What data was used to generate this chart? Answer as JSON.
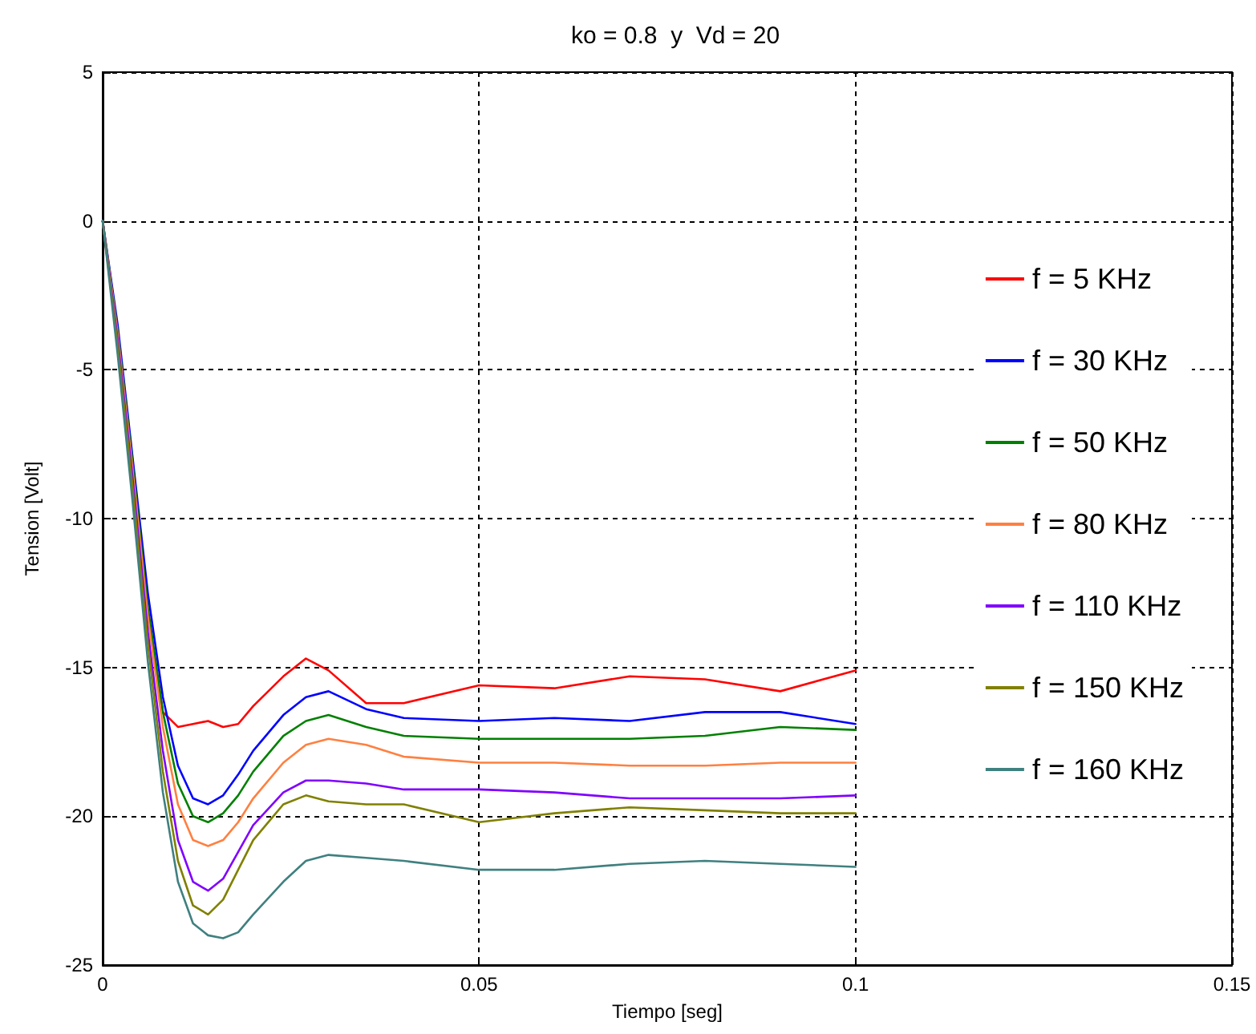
{
  "chart_data": {
    "type": "line",
    "title": "ko = 0.8  y  Vd = 20",
    "xlabel": "Tiempo [seg]",
    "ylabel": "Tension [Volt]",
    "x": [
      0,
      0.002,
      0.004,
      0.006,
      0.008,
      0.01,
      0.012,
      0.014,
      0.016,
      0.018,
      0.02,
      0.024,
      0.027,
      0.03,
      0.035,
      0.04,
      0.05,
      0.06,
      0.07,
      0.08,
      0.09,
      0.1
    ],
    "series": [
      {
        "name": "f = 5 KHz",
        "color": "#ff0000",
        "values": [
          0,
          -4,
          -8.5,
          -13,
          -16.5,
          -17,
          -16.9,
          -16.8,
          -17,
          -16.9,
          -16.3,
          -15.3,
          -14.7,
          -15.1,
          -16.2,
          -16.2,
          -15.6,
          -15.7,
          -15.3,
          -15.4,
          -15.8,
          -15.1
        ]
      },
      {
        "name": "f = 30 KHz",
        "color": "#0000ff",
        "values": [
          0,
          -3.5,
          -8,
          -12.5,
          -16,
          -18.3,
          -19.4,
          -19.6,
          -19.3,
          -18.6,
          -17.8,
          -16.6,
          -16.0,
          -15.8,
          -16.4,
          -16.7,
          -16.8,
          -16.7,
          -16.8,
          -16.5,
          -16.5,
          -16.9
        ]
      },
      {
        "name": "f = 50 KHz",
        "color": "#008000",
        "values": [
          0,
          -3.7,
          -8.2,
          -13,
          -16.5,
          -18.9,
          -20.0,
          -20.2,
          -19.9,
          -19.3,
          -18.5,
          -17.3,
          -16.8,
          -16.6,
          -17.0,
          -17.3,
          -17.4,
          -17.4,
          -17.4,
          -17.3,
          -17.0,
          -17.1
        ]
      },
      {
        "name": "f = 80 KHz",
        "color": "#ff8040",
        "values": [
          0,
          -3.8,
          -8.4,
          -13.3,
          -17,
          -19.6,
          -20.8,
          -21.0,
          -20.8,
          -20.2,
          -19.4,
          -18.2,
          -17.6,
          -17.4,
          -17.6,
          -18.0,
          -18.2,
          -18.2,
          -18.3,
          -18.3,
          -18.2,
          -18.2
        ]
      },
      {
        "name": "f = 110 KHz",
        "color": "#8000ff",
        "values": [
          0,
          -4,
          -8.7,
          -13.8,
          -17.8,
          -20.8,
          -22.2,
          -22.5,
          -22.1,
          -21.2,
          -20.3,
          -19.2,
          -18.8,
          -18.8,
          -18.9,
          -19.1,
          -19.1,
          -19.2,
          -19.4,
          -19.4,
          -19.4,
          -19.3
        ]
      },
      {
        "name": "f = 150 KHz",
        "color": "#808000",
        "values": [
          0,
          -4.2,
          -9,
          -14.2,
          -18.5,
          -21.5,
          -23,
          -23.3,
          -22.8,
          -21.8,
          -20.8,
          -19.6,
          -19.3,
          -19.5,
          -19.6,
          -19.6,
          -20.2,
          -19.9,
          -19.7,
          -19.8,
          -19.9,
          -19.9
        ]
      },
      {
        "name": "f = 160 KHz",
        "color": "#408080",
        "values": [
          0,
          -4.5,
          -9.5,
          -14.8,
          -19.2,
          -22.2,
          -23.6,
          -24.0,
          -24.1,
          -23.9,
          -23.3,
          -22.2,
          -21.5,
          -21.3,
          -21.4,
          -21.5,
          -21.8,
          -21.8,
          -21.6,
          -21.5,
          -21.6,
          -21.7
        ]
      }
    ],
    "xlim": [
      0,
      0.15
    ],
    "xticks": [
      0,
      0.05,
      0.1,
      0.15
    ],
    "ylim": [
      -25,
      5
    ],
    "yticks": [
      -25,
      -20,
      -15,
      -10,
      -5,
      0,
      5
    ],
    "grid": true,
    "legend": "right",
    "marker": "none",
    "line_style": "solid"
  }
}
